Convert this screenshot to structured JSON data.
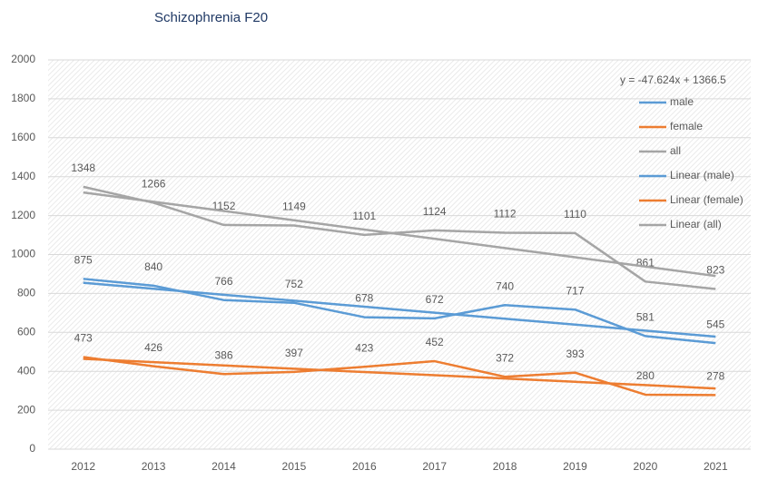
{
  "chart_data": {
    "type": "line",
    "title": "Schizophrenia F20",
    "categories": [
      "2012",
      "2013",
      "2014",
      "2015",
      "2016",
      "2017",
      "2018",
      "2019",
      "2020",
      "2021"
    ],
    "ylim": [
      0,
      2000
    ],
    "yticks": [
      0,
      200,
      400,
      600,
      800,
      1000,
      1200,
      1400,
      1600,
      1800,
      2000
    ],
    "grid": true,
    "annotation": "y = -47.624x + 1366.5",
    "legend": "right",
    "series": [
      {
        "name": "male",
        "color": "#5b9bd5",
        "show_labels": true,
        "values": [
          875,
          840,
          766,
          752,
          678,
          672,
          740,
          717,
          581,
          545
        ]
      },
      {
        "name": "female",
        "color": "#ed7d31",
        "show_labels": true,
        "values": [
          473,
          426,
          386,
          397,
          423,
          452,
          372,
          393,
          280,
          278
        ]
      },
      {
        "name": "all",
        "color": "#a5a5a5",
        "show_labels": true,
        "values": [
          1348,
          1266,
          1152,
          1149,
          1101,
          1124,
          1112,
          1110,
          861,
          823
        ]
      },
      {
        "name": "Linear (male)",
        "color": "#5b9bd5",
        "show_labels": false,
        "values": [
          855,
          824,
          793,
          763,
          732,
          701,
          670,
          640,
          609,
          578
        ]
      },
      {
        "name": "Linear (female)",
        "color": "#ed7d31",
        "show_labels": false,
        "values": [
          464,
          447,
          430,
          413,
          396,
          380,
          363,
          346,
          329,
          312
        ]
      },
      {
        "name": "Linear (all)",
        "color": "#a5a5a5",
        "show_labels": false,
        "values": [
          1319,
          1271,
          1224,
          1176,
          1128,
          1081,
          1033,
          986,
          938,
          890
        ]
      }
    ]
  }
}
